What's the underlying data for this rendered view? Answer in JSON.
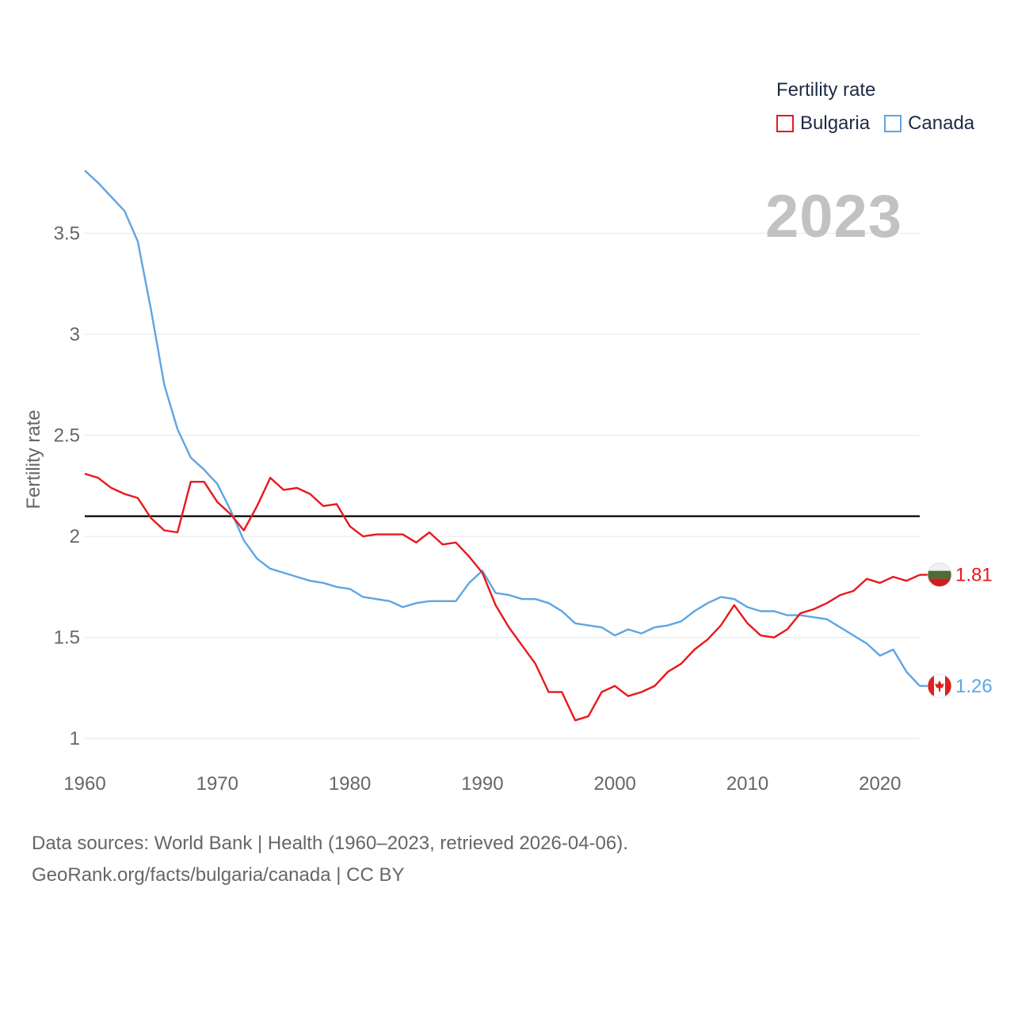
{
  "legend": {
    "title": "Fertility rate",
    "items": [
      {
        "label": "Bulgaria",
        "color": "#e8181c"
      },
      {
        "label": "Canada",
        "color": "#5ea5e3"
      }
    ]
  },
  "year_label": "2023",
  "source": {
    "line1": "Data sources: World Bank | Health (1960–2023, retrieved 2026-04-06).",
    "line2": "GeoRank.org/facts/bulgaria/canada | CC BY"
  },
  "chart_data": {
    "type": "line",
    "title": "",
    "xlabel": "",
    "ylabel": "Fertility rate",
    "xlim": [
      1960,
      2023
    ],
    "ylim": [
      0.95,
      3.87
    ],
    "x_ticks": [
      1960,
      1970,
      1980,
      1990,
      2000,
      2010,
      2020
    ],
    "y_ticks": [
      1,
      1.5,
      2,
      2.5,
      3,
      3.5
    ],
    "y_tick_labels": [
      "1",
      "1.5",
      "2",
      "2.5",
      "3",
      "3.5"
    ],
    "reference_line": 2.1,
    "x": [
      1960,
      1961,
      1962,
      1963,
      1964,
      1965,
      1966,
      1967,
      1968,
      1969,
      1970,
      1971,
      1972,
      1973,
      1974,
      1975,
      1976,
      1977,
      1978,
      1979,
      1980,
      1981,
      1982,
      1983,
      1984,
      1985,
      1986,
      1987,
      1988,
      1989,
      1990,
      1991,
      1992,
      1993,
      1994,
      1995,
      1996,
      1997,
      1998,
      1999,
      2000,
      2001,
      2002,
      2003,
      2004,
      2005,
      2006,
      2007,
      2008,
      2009,
      2010,
      2011,
      2012,
      2013,
      2014,
      2015,
      2016,
      2017,
      2018,
      2019,
      2020,
      2021,
      2022,
      2023
    ],
    "series": [
      {
        "name": "Bulgaria",
        "color": "#e8181c",
        "end_label": "1.81",
        "values": [
          2.31,
          2.29,
          2.24,
          2.21,
          2.19,
          2.09,
          2.03,
          2.02,
          2.27,
          2.27,
          2.17,
          2.11,
          2.03,
          2.15,
          2.29,
          2.23,
          2.24,
          2.21,
          2.15,
          2.16,
          2.05,
          2.0,
          2.01,
          2.01,
          2.01,
          1.97,
          2.02,
          1.96,
          1.97,
          1.9,
          1.82,
          1.66,
          1.55,
          1.46,
          1.37,
          1.23,
          1.23,
          1.09,
          1.11,
          1.23,
          1.26,
          1.21,
          1.23,
          1.26,
          1.33,
          1.37,
          1.44,
          1.49,
          1.56,
          1.66,
          1.57,
          1.51,
          1.5,
          1.54,
          1.62,
          1.64,
          1.67,
          1.71,
          1.73,
          1.79,
          1.77,
          1.8,
          1.78,
          1.81
        ]
      },
      {
        "name": "Canada",
        "color": "#5ea5e3",
        "end_label": "1.26",
        "values": [
          3.81,
          3.75,
          3.68,
          3.61,
          3.46,
          3.12,
          2.75,
          2.53,
          2.39,
          2.33,
          2.26,
          2.13,
          1.98,
          1.89,
          1.84,
          1.82,
          1.8,
          1.78,
          1.77,
          1.75,
          1.74,
          1.7,
          1.69,
          1.68,
          1.65,
          1.67,
          1.68,
          1.68,
          1.68,
          1.77,
          1.83,
          1.72,
          1.71,
          1.69,
          1.69,
          1.67,
          1.63,
          1.57,
          1.56,
          1.55,
          1.51,
          1.54,
          1.52,
          1.55,
          1.56,
          1.58,
          1.63,
          1.67,
          1.7,
          1.69,
          1.65,
          1.63,
          1.63,
          1.61,
          1.61,
          1.6,
          1.59,
          1.55,
          1.51,
          1.47,
          1.41,
          1.44,
          1.33,
          1.26
        ]
      }
    ]
  }
}
